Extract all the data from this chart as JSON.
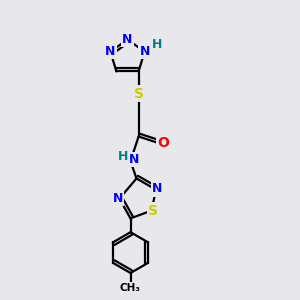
{
  "bg_color": "#e8e8ec",
  "atom_colors": {
    "N": "#0000ff",
    "S": "#cccc00",
    "O": "#ff0000",
    "C": "#000000",
    "H": "#008080"
  },
  "bond_lw": 1.6,
  "font_size_atom": 9
}
